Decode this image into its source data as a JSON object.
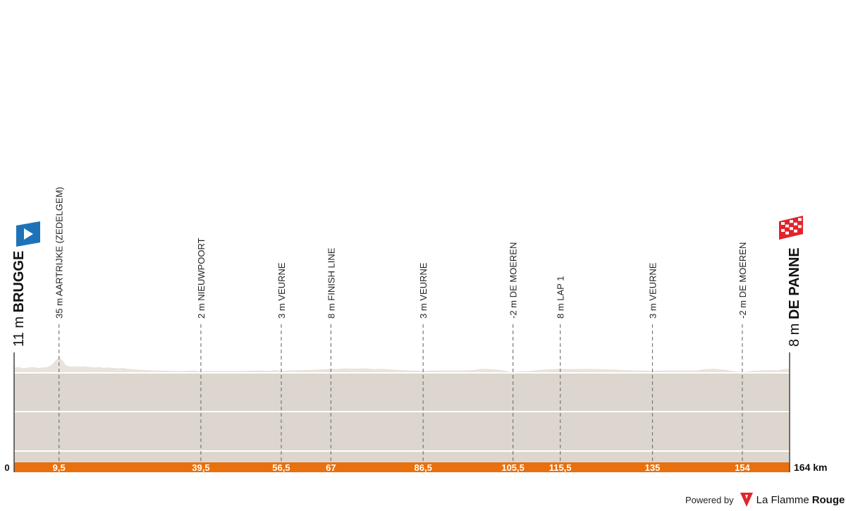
{
  "chart_data": {
    "type": "area",
    "title": "",
    "xlabel": "",
    "ylabel": "",
    "x_unit": "km",
    "xlim": [
      0,
      164
    ],
    "colors": {
      "profile_fill": "#ddd6ce",
      "profile_top": "#e9e3dc",
      "distance_bar": "#e8700f",
      "grid": "#ffffff",
      "marker_line": "#777777",
      "start_icon": "#1e73b8",
      "finish_icon": "#e2232a"
    },
    "start": {
      "km": 0,
      "name": "BRUGGE",
      "altitude": "11 m",
      "icon": "play-icon"
    },
    "finish": {
      "km": 164,
      "name": "DE PANNE",
      "altitude": "8 m",
      "icon": "checkered-flag-icon"
    },
    "points": [
      {
        "km": 9.5,
        "km_label": "9,5",
        "label": "35 m AARTRIJKE (ZEDELGEM)"
      },
      {
        "km": 39.5,
        "km_label": "39,5",
        "label": "2 m  NIEUWPOORT"
      },
      {
        "km": 56.5,
        "km_label": "56,5",
        "label": "3 m VEURNE"
      },
      {
        "km": 67,
        "km_label": "67",
        "label": "8 m FINISH LINE"
      },
      {
        "km": 86.5,
        "km_label": "86,5",
        "label": "3 m VEURNE"
      },
      {
        "km": 105.5,
        "km_label": "105,5",
        "label": "-2 m DE MOEREN"
      },
      {
        "km": 115.5,
        "km_label": "115,5",
        "label": "8 m LAP 1"
      },
      {
        "km": 135,
        "km_label": "135",
        "label": "3 m VEURNE"
      },
      {
        "km": 154,
        "km_label": "154",
        "label": "-2 m DE MOEREN"
      }
    ],
    "axis_start_label": "0",
    "axis_end_label": "164 km",
    "elevation": [
      [
        0,
        11
      ],
      [
        1,
        12
      ],
      [
        2,
        9
      ],
      [
        3,
        11
      ],
      [
        4,
        12
      ],
      [
        5,
        10
      ],
      [
        6,
        11
      ],
      [
        7,
        12
      ],
      [
        8,
        18
      ],
      [
        8.8,
        28
      ],
      [
        9.5,
        35
      ],
      [
        10.2,
        28
      ],
      [
        11,
        16
      ],
      [
        12,
        13
      ],
      [
        13,
        14
      ],
      [
        14,
        13
      ],
      [
        15,
        14
      ],
      [
        16,
        12
      ],
      [
        17,
        11
      ],
      [
        18,
        12
      ],
      [
        19,
        10
      ],
      [
        20,
        11
      ],
      [
        22,
        9
      ],
      [
        23,
        10
      ],
      [
        24,
        8
      ],
      [
        26,
        6
      ],
      [
        28,
        5
      ],
      [
        30,
        4
      ],
      [
        34,
        3
      ],
      [
        36,
        3
      ],
      [
        38,
        4
      ],
      [
        39.5,
        2
      ],
      [
        41,
        3
      ],
      [
        44,
        3
      ],
      [
        48,
        3
      ],
      [
        52,
        4
      ],
      [
        54,
        3
      ],
      [
        55,
        5
      ],
      [
        56.5,
        3
      ],
      [
        58,
        4
      ],
      [
        62,
        5
      ],
      [
        64,
        6
      ],
      [
        66,
        7
      ],
      [
        67,
        8
      ],
      [
        68,
        7
      ],
      [
        70,
        9
      ],
      [
        72,
        8
      ],
      [
        74,
        9
      ],
      [
        76,
        7
      ],
      [
        78,
        8
      ],
      [
        80,
        6
      ],
      [
        82,
        5
      ],
      [
        84,
        4
      ],
      [
        86.5,
        3
      ],
      [
        89,
        4
      ],
      [
        92,
        4
      ],
      [
        95,
        4
      ],
      [
        97,
        5
      ],
      [
        99,
        8
      ],
      [
        101,
        7
      ],
      [
        103,
        5
      ],
      [
        104,
        3
      ],
      [
        105.5,
        -2
      ],
      [
        107,
        2
      ],
      [
        109,
        3
      ],
      [
        112,
        6
      ],
      [
        115.5,
        8
      ],
      [
        118,
        7
      ],
      [
        121,
        8
      ],
      [
        124,
        7
      ],
      [
        127,
        6
      ],
      [
        129,
        5
      ],
      [
        131,
        4
      ],
      [
        133,
        4
      ],
      [
        135,
        3
      ],
      [
        137,
        4
      ],
      [
        140,
        4
      ],
      [
        144,
        4
      ],
      [
        146,
        7
      ],
      [
        148,
        8
      ],
      [
        150,
        6
      ],
      [
        152,
        3
      ],
      [
        154,
        -2
      ],
      [
        156,
        3
      ],
      [
        158,
        4
      ],
      [
        160,
        5
      ],
      [
        161.5,
        4
      ],
      [
        162.5,
        7
      ],
      [
        164,
        8
      ]
    ]
  },
  "footer": {
    "powered_by": "Powered by",
    "brand_part1": "La Flamme",
    "brand_part2": "Rouge",
    "brand_icon": "flamme-rouge-logo"
  }
}
